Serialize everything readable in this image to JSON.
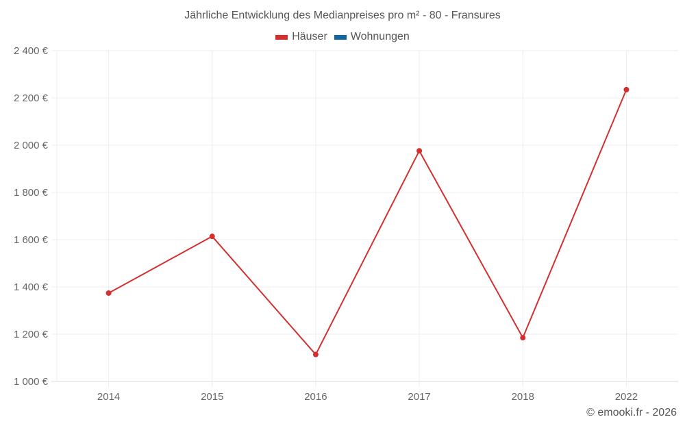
{
  "chart_data": {
    "type": "line",
    "title": "Jährliche Entwicklung des Medianpreises pro m² - 80 - Fransures",
    "categories": [
      "2014",
      "2015",
      "2016",
      "2017",
      "2018",
      "2022"
    ],
    "series": [
      {
        "name": "Häuser",
        "color": "#d32f2f",
        "values": [
          1374,
          1614,
          1114,
          1976,
          1185,
          2235
        ]
      },
      {
        "name": "Wohnungen",
        "color": "#1565a0",
        "values": []
      }
    ],
    "xlabel": "",
    "ylabel": "",
    "ylim": [
      1000,
      2400
    ],
    "yticks": [
      1000,
      1200,
      1400,
      1600,
      1800,
      2000,
      2200,
      2400
    ],
    "ytick_labels": [
      "1 000 €",
      "1 200 €",
      "1 400 €",
      "1 600 €",
      "1 800 €",
      "2 000 €",
      "2 200 €",
      "2 400 €"
    ],
    "grid": true,
    "legend_position": "top-center"
  },
  "header": {
    "title": "Jährliche Entwicklung des Medianpreises pro m² - 80 - Fransures"
  },
  "legend": {
    "items": [
      {
        "label": "Häuser",
        "color": "#d32f2f"
      },
      {
        "label": "Wohnungen",
        "color": "#1565a0"
      }
    ]
  },
  "footer": {
    "credit": "© emooki.fr - 2026"
  }
}
